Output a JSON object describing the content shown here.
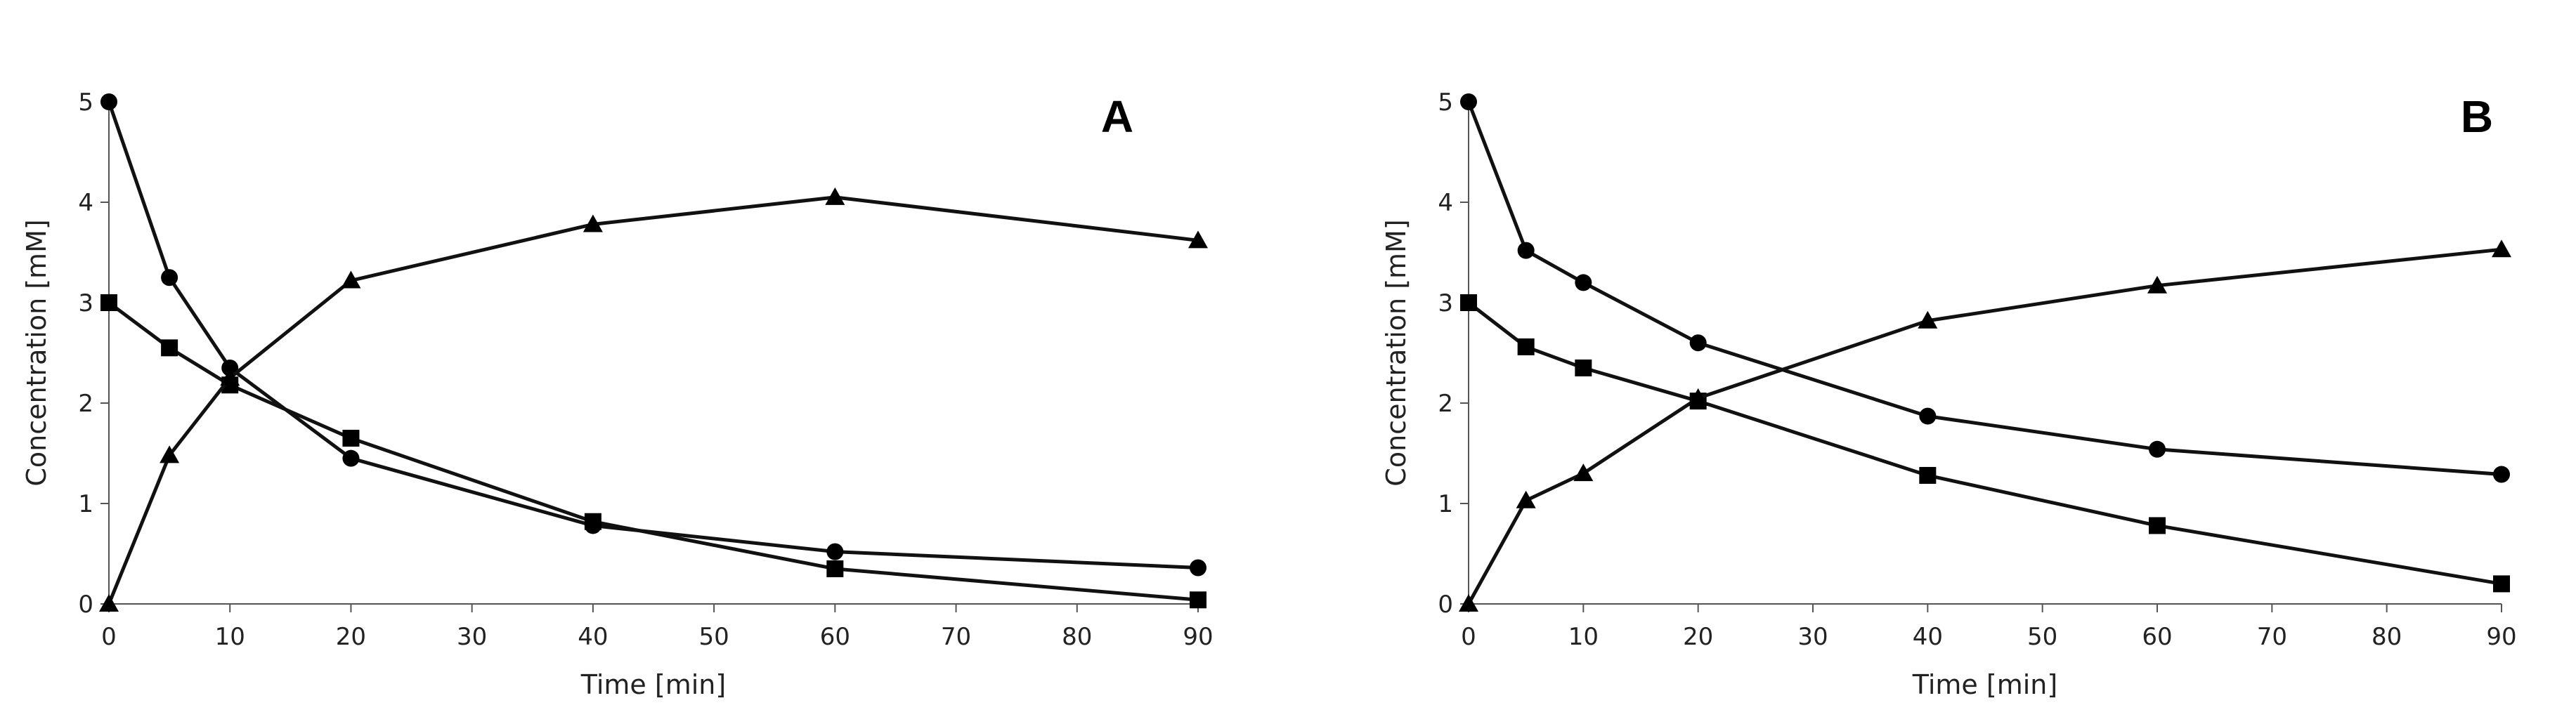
{
  "chart_data": [
    {
      "type": "line",
      "panel_label": "A",
      "xlabel": "Time [min]",
      "ylabel": "Concentration [mM]",
      "xlim": [
        0,
        90
      ],
      "ylim": [
        0,
        5
      ],
      "xticks": [
        0,
        10,
        20,
        30,
        40,
        50,
        60,
        70,
        80,
        90
      ],
      "yticks": [
        0,
        1,
        2,
        3,
        4,
        5
      ],
      "grid": false,
      "series": [
        {
          "name": "circle",
          "marker": "circle",
          "x": [
            0,
            5,
            10,
            20,
            40,
            60,
            90
          ],
          "y": [
            5.0,
            3.25,
            2.35,
            1.45,
            0.78,
            0.52,
            0.36
          ]
        },
        {
          "name": "square",
          "marker": "square",
          "x": [
            0,
            5,
            10,
            20,
            40,
            60,
            90
          ],
          "y": [
            3.0,
            2.55,
            2.18,
            1.65,
            0.82,
            0.35,
            0.04
          ]
        },
        {
          "name": "triangle",
          "marker": "triangle",
          "x": [
            0,
            5,
            10,
            20,
            40,
            60,
            90
          ],
          "y": [
            0.0,
            1.48,
            2.25,
            3.22,
            3.78,
            4.05,
            3.62
          ]
        }
      ]
    },
    {
      "type": "line",
      "panel_label": "B",
      "xlabel": "Time [min]",
      "ylabel": "Concentration [mM]",
      "xlim": [
        0,
        90
      ],
      "ylim": [
        0,
        5
      ],
      "xticks": [
        0,
        10,
        20,
        30,
        40,
        50,
        60,
        70,
        80,
        90
      ],
      "yticks": [
        0,
        1,
        2,
        3,
        4,
        5
      ],
      "grid": false,
      "series": [
        {
          "name": "circle",
          "marker": "circle",
          "x": [
            0,
            5,
            10,
            20,
            40,
            60,
            90
          ],
          "y": [
            5.0,
            3.52,
            3.2,
            2.6,
            1.87,
            1.54,
            1.29
          ]
        },
        {
          "name": "square",
          "marker": "square",
          "x": [
            0,
            5,
            10,
            20,
            40,
            60,
            90
          ],
          "y": [
            3.0,
            2.56,
            2.35,
            2.02,
            1.28,
            0.78,
            0.2
          ]
        },
        {
          "name": "triangle",
          "marker": "triangle",
          "x": [
            0,
            5,
            10,
            20,
            40,
            60,
            90
          ],
          "y": [
            0.0,
            1.03,
            1.3,
            2.05,
            2.82,
            3.17,
            3.53
          ]
        }
      ]
    }
  ]
}
